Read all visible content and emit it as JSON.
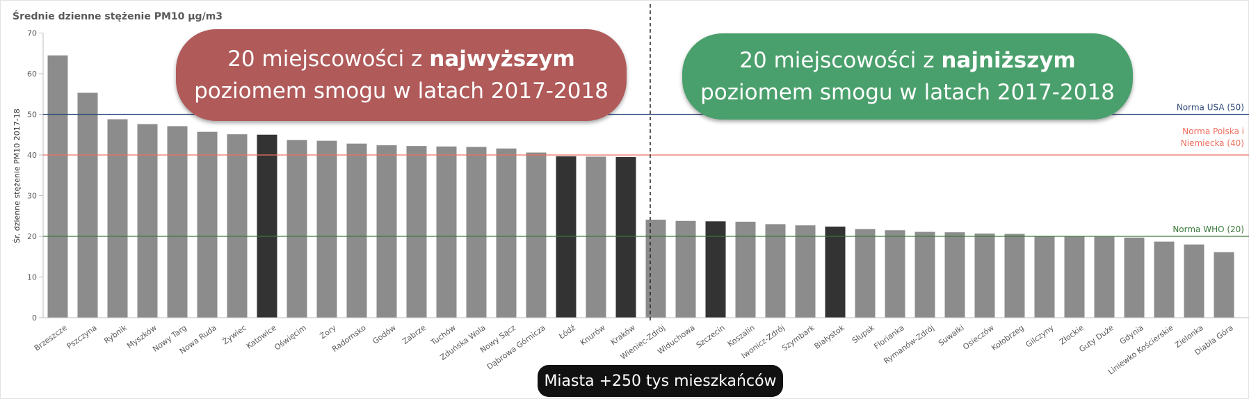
{
  "page_title": "Średnie dzienne stężenie PM10 µg/m3",
  "callouts": {
    "top": {
      "pre": "20 miejscowości z ",
      "bold": "najwyższym",
      "post": " poziomem smogu w latach 2017-2018",
      "color": "#b05a5a"
    },
    "bottom": {
      "pre": "20 miejscowości z ",
      "bold": "najniższym",
      "post": " poziomem smogu w latach 2017-2018",
      "color": "#4aa06c"
    }
  },
  "pill_label": "Miasta +250 tys mieszkańców",
  "chart_data": {
    "type": "bar",
    "title": "Średnie dzienne stężenie PM10 µg/m3",
    "xlabel": "",
    "ylabel": "Śr. dzienne stężenie PM10 2017-18",
    "ylim": [
      0,
      70
    ],
    "yticks": [
      0,
      10,
      20,
      30,
      40,
      50,
      60,
      70
    ],
    "grid": false,
    "categories": [
      "Brzeszcze",
      "Pszczyna",
      "Rybnik",
      "Myszków",
      "Nowy Targ",
      "Nowa Ruda",
      "Żywiec",
      "Katowice",
      "Oświęcim",
      "Żory",
      "Radomsko",
      "Godów",
      "Zabrze",
      "Tuchów",
      "Zduńska Wola",
      "Nowy Sącz",
      "Dąbrowa Górnicza",
      "Łódź",
      "Knurów",
      "Kraków",
      "Wieniec-Zdrój",
      "Widuchowa",
      "Szczecin",
      "Koszalin",
      "Iwonicz-Zdrój",
      "Szymbark",
      "Białystok",
      "Słupsk",
      "Florianka",
      "Rymanów-Zdrój",
      "Suwałki",
      "Osieczów",
      "Kołobrzeg",
      "Gilczyny",
      "Złockie",
      "Guty Duże",
      "Gdynia",
      "Liniewko Kościerskie",
      "Zielonka",
      "Diabla Góra"
    ],
    "values": [
      64.5,
      55.3,
      48.8,
      47.6,
      47.1,
      45.7,
      45.1,
      45.0,
      43.7,
      43.5,
      42.8,
      42.4,
      42.2,
      42.1,
      42.0,
      41.6,
      40.6,
      39.7,
      39.6,
      39.5,
      24.1,
      23.8,
      23.7,
      23.6,
      23.0,
      22.7,
      22.4,
      21.8,
      21.5,
      21.1,
      21.0,
      20.7,
      20.6,
      20.1,
      20.0,
      19.9,
      19.7,
      18.7,
      18.0,
      16.1
    ],
    "highlight_cities": [
      "Katowice",
      "Łódź",
      "Kraków",
      "Szczecin",
      "Białystok"
    ],
    "colors": {
      "bar": "#8c8c8c",
      "highlight": "#333333",
      "usa": "#2f4a7a",
      "pl_de": "#f07060",
      "who": "#3a7a3a"
    },
    "reference_lines": [
      {
        "name": "Norma USA (50)",
        "value": 50,
        "label_lines": [
          "Norma USA (50)"
        ]
      },
      {
        "name": "Norma Polska i Niemiecka (40)",
        "value": 40,
        "label_lines": [
          "Norma Polska i",
          "Niemiecka (40)"
        ]
      },
      {
        "name": "Norma WHO (20)",
        "value": 20,
        "label_lines": [
          "Norma WHO (20)"
        ]
      }
    ]
  }
}
